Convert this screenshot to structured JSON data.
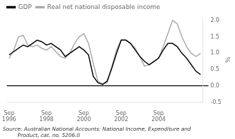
{
  "chart_data": {
    "type": "line",
    "categories": [
      "Sep\n1996",
      null,
      null,
      null,
      null,
      null,
      null,
      null,
      "Sep\n1998",
      null,
      null,
      null,
      null,
      null,
      null,
      null,
      "Sep\n2000",
      null,
      null,
      null,
      null,
      null,
      null,
      null,
      "Sep\n2002",
      null,
      null,
      null,
      null,
      null,
      null,
      null,
      "Sep\n2004",
      null,
      null,
      null,
      null,
      null,
      null,
      null,
      null,
      null
    ],
    "series": [
      {
        "name": "GDP",
        "color": "#000000",
        "values": [
          0.95,
          1.05,
          1.15,
          1.25,
          1.2,
          1.3,
          1.4,
          1.35,
          1.25,
          1.3,
          1.2,
          1.1,
          0.9,
          1.0,
          1.1,
          1.2,
          1.1,
          0.95,
          0.3,
          0.1,
          0.05,
          0.15,
          0.55,
          1.0,
          1.4,
          1.4,
          1.3,
          1.1,
          0.9,
          0.75,
          0.65,
          0.75,
          0.85,
          1.1,
          1.3,
          1.3,
          1.2,
          1.0,
          0.85,
          0.65,
          0.45,
          0.35
        ]
      },
      {
        "name": "Real net national disposable income",
        "color": "#aaaaaa",
        "values": [
          0.85,
          1.1,
          1.5,
          1.55,
          1.25,
          1.2,
          1.25,
          1.15,
          1.1,
          1.2,
          1.05,
          0.9,
          0.85,
          1.0,
          1.3,
          1.5,
          1.6,
          1.3,
          0.7,
          0.15,
          0.05,
          0.1,
          0.6,
          1.1,
          1.4,
          1.4,
          1.3,
          1.15,
          0.9,
          0.6,
          0.65,
          0.75,
          0.85,
          1.2,
          1.6,
          2.0,
          1.9,
          1.5,
          1.2,
          1.0,
          0.9,
          1.0
        ]
      }
    ],
    "y_label": "%",
    "annotation": "Source: Australian National Accounts: National Income, Expenditure and\n         Product, cat. no. 5206.0",
    "ylim": [
      -0.5,
      2.1
    ],
    "yticks": [
      -0.5,
      {
        "value": 0,
        "label": "0.0"
      },
      0.5,
      {
        "value": 1,
        "label": "1.0"
      },
      1.5,
      {
        "value": 2,
        "label": "2.0"
      }
    ],
    "grid": false,
    "legend": "upper left"
  }
}
